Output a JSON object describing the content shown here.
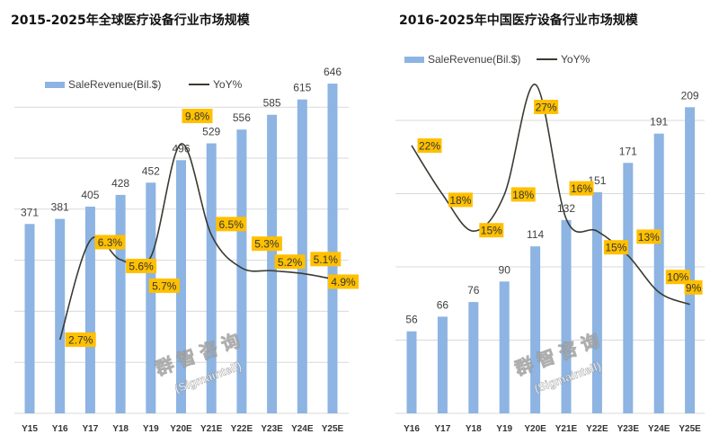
{
  "watermark": {
    "line1": "群智咨询",
    "line2": "(Sigmaintell)"
  },
  "colors": {
    "bar": "#8DB4E2",
    "line": "#3A3A32",
    "label_box": "#FFC000",
    "grid": "#D9D9D9"
  },
  "chart_data": [
    {
      "type": "bar",
      "title": "2015-2025年全球医疗设备行业市场规模",
      "categories": [
        "Y15",
        "Y16",
        "Y17",
        "Y18",
        "Y19",
        "Y20E",
        "Y21E",
        "Y22E",
        "Y23E",
        "Y24E",
        "Y25E"
      ],
      "series": [
        {
          "name": "SaleRevenue(Bil.$)",
          "type": "bar",
          "values": [
            371,
            381,
            405,
            428,
            452,
            496,
            529,
            556,
            585,
            615,
            646
          ]
        },
        {
          "name": "YoY%",
          "type": "line",
          "axis": "secondary",
          "values": [
            null,
            2.7,
            6.3,
            5.6,
            5.7,
            9.8,
            6.5,
            5.3,
            5.2,
            5.1,
            4.9
          ],
          "labels": [
            "",
            "2.7%",
            "6.3%",
            "5.6%",
            "5.7%",
            "9.8%",
            "6.5%",
            "5.3%",
            "5.2%",
            "5.1%",
            "4.9%"
          ]
        }
      ],
      "ylim": [
        0,
        800
      ],
      "legend": "top",
      "grid": true
    },
    {
      "type": "bar",
      "title": "2016-2025年中国医疗设备行业市场规模",
      "categories": [
        "Y16",
        "Y17",
        "Y18",
        "Y19",
        "Y20E",
        "Y21E",
        "Y22E",
        "Y23E",
        "Y24E",
        "Y25E"
      ],
      "series": [
        {
          "name": "SaleRevenue(Bil.$)",
          "type": "bar",
          "values": [
            56,
            66,
            76,
            90,
            114,
            132,
            151,
            171,
            191,
            209
          ]
        },
        {
          "name": "YoY%",
          "type": "line",
          "axis": "secondary",
          "values": [
            22,
            18,
            15,
            18,
            27,
            16,
            15,
            13,
            10,
            9
          ],
          "labels": [
            "22%",
            "18%",
            "15%",
            "18%",
            "27%",
            "16%",
            "15%",
            "13%",
            "10%",
            "9%"
          ]
        }
      ],
      "ylim": [
        0,
        250
      ],
      "legend": "top",
      "grid": true
    }
  ]
}
